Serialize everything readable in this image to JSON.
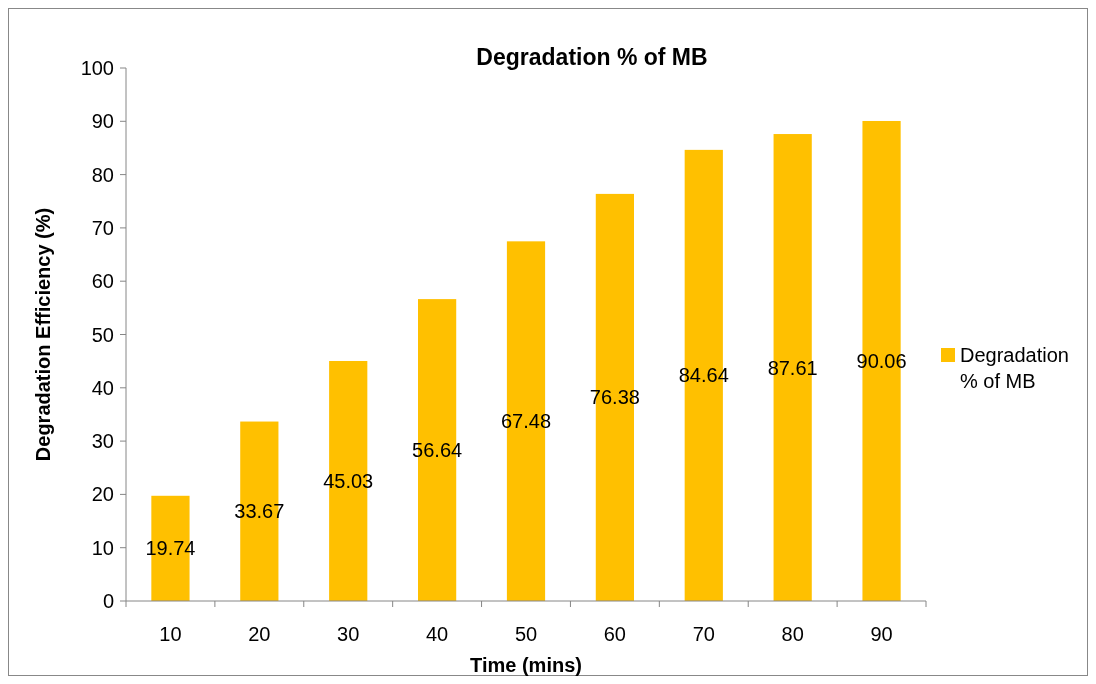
{
  "chart_data": {
    "type": "bar",
    "title": "Degradation % of MB",
    "xlabel": "Time (mins)",
    "ylabel": "Degradation Efficiency (%)",
    "categories": [
      "10",
      "20",
      "30",
      "40",
      "50",
      "60",
      "70",
      "80",
      "90"
    ],
    "series": [
      {
        "name": "Degradation % of MB",
        "color": "#ffc000",
        "values": [
          19.74,
          33.67,
          45.03,
          56.64,
          67.48,
          76.38,
          84.64,
          87.61,
          90.06
        ]
      }
    ],
    "ylim": [
      0,
      100
    ],
    "yticks": [
      0,
      10,
      20,
      30,
      40,
      50,
      60,
      70,
      80,
      90,
      100
    ],
    "grid": false,
    "legend": "right",
    "data_labels": true
  }
}
